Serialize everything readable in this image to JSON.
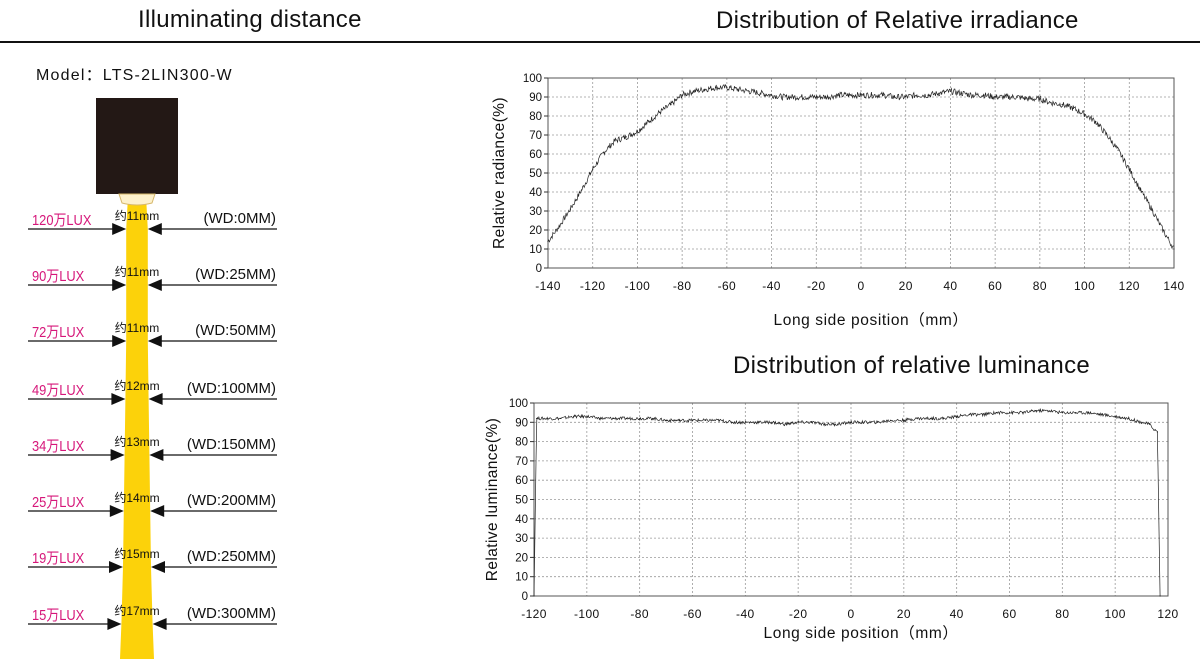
{
  "header": {
    "left_title": "Illuminating distance",
    "model": "Model：LTS-2LIN300-W"
  },
  "colors": {
    "lux_label": "#d6177a",
    "beam": "#fcd20a",
    "lamp_body": "#231815",
    "trace": "#222222",
    "grid": "#9a9a9a"
  },
  "illumination_rows": [
    {
      "lux": "120万LUX",
      "width": "约11mm",
      "wd": "(WD:0MM)",
      "beam_mm": 11
    },
    {
      "lux": "90万LUX",
      "width": "约11mm",
      "wd": "(WD:25MM)",
      "beam_mm": 11
    },
    {
      "lux": "72万LUX",
      "width": "约11mm",
      "wd": "(WD:50MM)",
      "beam_mm": 11
    },
    {
      "lux": "49万LUX",
      "width": "约12mm",
      "wd": "(WD:100MM)",
      "beam_mm": 12
    },
    {
      "lux": "34万LUX",
      "width": "约13mm",
      "wd": "(WD:150MM)",
      "beam_mm": 13
    },
    {
      "lux": "25万LUX",
      "width": "约14mm",
      "wd": "(WD:200MM)",
      "beam_mm": 14
    },
    {
      "lux": "19万LUX",
      "width": "约15mm",
      "wd": "(WD:250MM)",
      "beam_mm": 15
    },
    {
      "lux": "15万LUX",
      "width": "约17mm",
      "wd": "(WD:300MM)",
      "beam_mm": 17
    }
  ],
  "chart_data": [
    {
      "type": "line",
      "title": "Distribution of Relative irradiance",
      "xlabel": "Long side position（mm）",
      "ylabel": "Relative radiance(%)",
      "xlim": [
        -140,
        140
      ],
      "ylim": [
        0,
        100
      ],
      "xticks": [
        -140,
        -120,
        -100,
        -80,
        -60,
        -40,
        -20,
        0,
        20,
        40,
        60,
        80,
        100,
        120,
        140
      ],
      "yticks": [
        0,
        10,
        20,
        30,
        40,
        50,
        60,
        70,
        80,
        90,
        100
      ],
      "grid": true,
      "series": [
        {
          "x": [
            -140,
            -135,
            -130,
            -125,
            -120,
            -115,
            -110,
            -105,
            -100,
            -95,
            -90,
            -85,
            -80,
            -75,
            -70,
            -65,
            -60,
            -55,
            -50,
            -45,
            -40,
            -35,
            -30,
            -25,
            -20,
            -15,
            -10,
            -5,
            0,
            5,
            10,
            15,
            20,
            25,
            30,
            35,
            40,
            45,
            50,
            55,
            60,
            65,
            70,
            75,
            80,
            85,
            90,
            95,
            100,
            105,
            110,
            115,
            120,
            125,
            130,
            135,
            140
          ],
          "y": [
            14,
            22,
            31,
            41,
            52,
            61,
            67,
            69,
            72,
            77,
            82,
            86,
            91,
            93,
            94,
            95,
            95,
            94,
            93,
            92,
            91,
            90,
            90,
            90,
            90,
            90,
            91,
            91,
            91,
            91,
            91,
            90,
            90,
            91,
            91,
            92,
            93,
            92,
            91,
            91,
            90,
            90,
            90,
            89,
            89,
            87,
            86,
            84,
            81,
            77,
            70,
            62,
            52,
            41,
            31,
            20,
            10
          ]
        }
      ]
    },
    {
      "type": "line",
      "title": "Distribution of relative luminance",
      "xlabel": "Long side position（mm）",
      "ylabel": "Relative luminance(%)",
      "xlim": [
        -120,
        120
      ],
      "ylim": [
        0,
        100
      ],
      "xticks": [
        -120,
        -100,
        -80,
        -60,
        -40,
        -20,
        0,
        20,
        40,
        60,
        80,
        100,
        120
      ],
      "yticks": [
        0,
        10,
        20,
        30,
        40,
        50,
        60,
        70,
        80,
        90,
        100
      ],
      "grid": true,
      "series": [
        {
          "x": [
            -120,
            -119,
            -115,
            -110,
            -105,
            -100,
            -95,
            -90,
            -85,
            -80,
            -75,
            -70,
            -65,
            -60,
            -55,
            -50,
            -45,
            -40,
            -35,
            -30,
            -25,
            -20,
            -15,
            -10,
            -5,
            0,
            5,
            10,
            15,
            20,
            25,
            30,
            35,
            40,
            45,
            50,
            55,
            60,
            65,
            70,
            75,
            80,
            85,
            90,
            95,
            100,
            105,
            110,
            113,
            115,
            116,
            117
          ],
          "y": [
            0,
            92,
            92,
            92,
            93,
            93,
            92,
            92,
            92,
            92,
            92,
            91,
            91,
            91,
            91,
            91,
            90,
            90,
            90,
            90,
            89,
            90,
            90,
            89,
            89,
            90,
            90,
            90,
            91,
            91,
            92,
            92,
            92,
            93,
            94,
            94,
            95,
            95,
            95,
            96,
            96,
            95,
            95,
            95,
            94,
            93,
            92,
            90,
            89,
            86,
            85,
            0
          ]
        }
      ]
    }
  ]
}
